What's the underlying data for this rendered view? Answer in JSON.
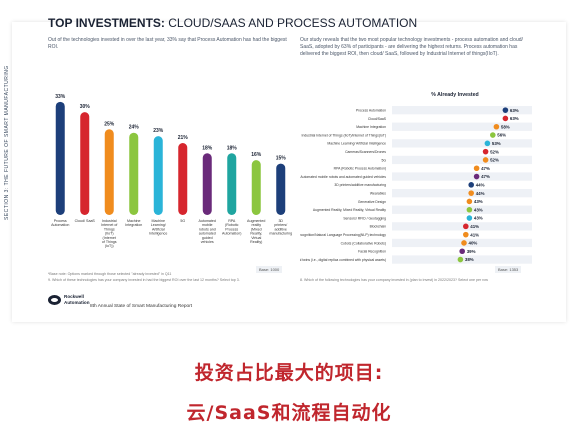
{
  "side_label": "SECTION 3: THE FUTURE OF SMART MANUFACTURING",
  "title_bold": "TOP INVESTMENTS:",
  "title_light": " CLOUD/SAAS AND PROCESS AUTOMATION",
  "intro_left": "Out of the technologies invested in over the last year, 33% say that Process Automation has had the biggest ROI.",
  "intro_right": "Our study reveals that the two most popular technology investments - process automation and cloud/ SaaS, adopted by 63% of participants - are delivering the highest returns. Process automation has delivered the biggest ROI, then cloud/ SaaS, followed by Industrial Internet of things(IIoT).",
  "base_left": "Base: 1000",
  "base_right": "Base: 1353",
  "footnote_1": "*Base note: Options marked through those selected \"already invested\" in Q11",
  "footnote_2": "9. Which of these technologies has your company invested in had the biggest ROI over the last 12 months? Select top 3.",
  "footnote_3": "8. Which of the following technologies has your company invested in (plan to invest) in 2022/2023? Select one per row",
  "logo_line1": "Rockwell",
  "logo_line2": "Automation",
  "report_name": "8th Annual State of Smart Manufacturing Report",
  "caption_line1": "投资占比最大的项目:",
  "caption_line2": "云/SaaS和流程自动化",
  "colors": {
    "navy": "#1d3f7a",
    "red": "#d6262e",
    "orange": "#f08c1e",
    "green": "#8cc63f",
    "cyan": "#2ab4d8",
    "purple": "#6a2a7a",
    "teal": "#1fa5a0"
  },
  "chart_data": [
    {
      "type": "bar",
      "categories": [
        "Process Automation",
        "Cloud/ SaaS",
        "Industrial Internet of Things (IIoT) (Internet of Things (IoT))",
        "Machine Integration",
        "Machine Learning/ Artificial Intelligence",
        "5G",
        "Automated mobile robots and automated guided vehicles",
        "RPA (Robotic Process Automation)",
        "Augmented reality (Mixed Reality, Virtual Reality)",
        "3D printers/ additive manufacturing"
      ],
      "values": [
        33,
        30,
        25,
        24,
        23,
        21,
        18,
        18,
        16,
        15
      ],
      "value_labels": [
        "33%",
        "30%",
        "25%",
        "24%",
        "23%",
        "21%",
        "18%",
        "18%",
        "16%",
        "15%"
      ],
      "bar_colors": [
        "#1d3f7a",
        "#d6262e",
        "#f08c1e",
        "#8cc63f",
        "#2ab4d8",
        "#d6262e",
        "#6a2a7a",
        "#1fa5a0",
        "#8cc63f",
        "#1d3f7a"
      ],
      "ylim": [
        0,
        35
      ]
    },
    {
      "type": "scatter",
      "title": "% Already Invested",
      "categories": [
        "Process Automation",
        "Cloud/SaaS",
        "Machine Integration",
        "Industrial Internet of Things (IIoT)/Internet of Things(IoT)",
        "Machine Learning/ Artificial Intelligence",
        "Cameras/Scanners/Drones",
        "5G",
        "RPA (Robotic Process Automation)",
        "Automated mobile robots and automated guided vehicles",
        "3D printers/additive manufacturing",
        "Wearables",
        "Generative Design",
        "Augmented Reality, Mixed Reality, Virtual Reality",
        "Sensors/ RFID / Geotagging",
        "Blockchain",
        "Voice Recognition/Natural Language Processing(NLP) technology",
        "Cobots (Collaborative Robots)",
        "Facial Recognition",
        "Digital twins (i.e., digital replica combined with physical assets)"
      ],
      "values": [
        63,
        63,
        58,
        56,
        53,
        52,
        52,
        47,
        47,
        44,
        44,
        43,
        43,
        43,
        41,
        41,
        40,
        39,
        38
      ],
      "value_labels": [
        "63%",
        "63%",
        "58%",
        "56%",
        "53%",
        "52%",
        "52%",
        "47%",
        "47%",
        "44%",
        "44%",
        "43%",
        "43%",
        "43%",
        "41%",
        "41%",
        "40%",
        "39%",
        "38%"
      ],
      "dot_colors": [
        "#1d3f7a",
        "#d6262e",
        "#f08c1e",
        "#8cc63f",
        "#2ab4d8",
        "#d6262e",
        "#f08c1e",
        "#f08c1e",
        "#6a2a7a",
        "#1d3f7a",
        "#f08c1e",
        "#f08c1e",
        "#8cc63f",
        "#2ab4d8",
        "#d6262e",
        "#f08c1e",
        "#f08c1e",
        "#6a2a7a",
        "#8cc63f"
      ],
      "xlim": [
        0,
        70
      ]
    }
  ]
}
